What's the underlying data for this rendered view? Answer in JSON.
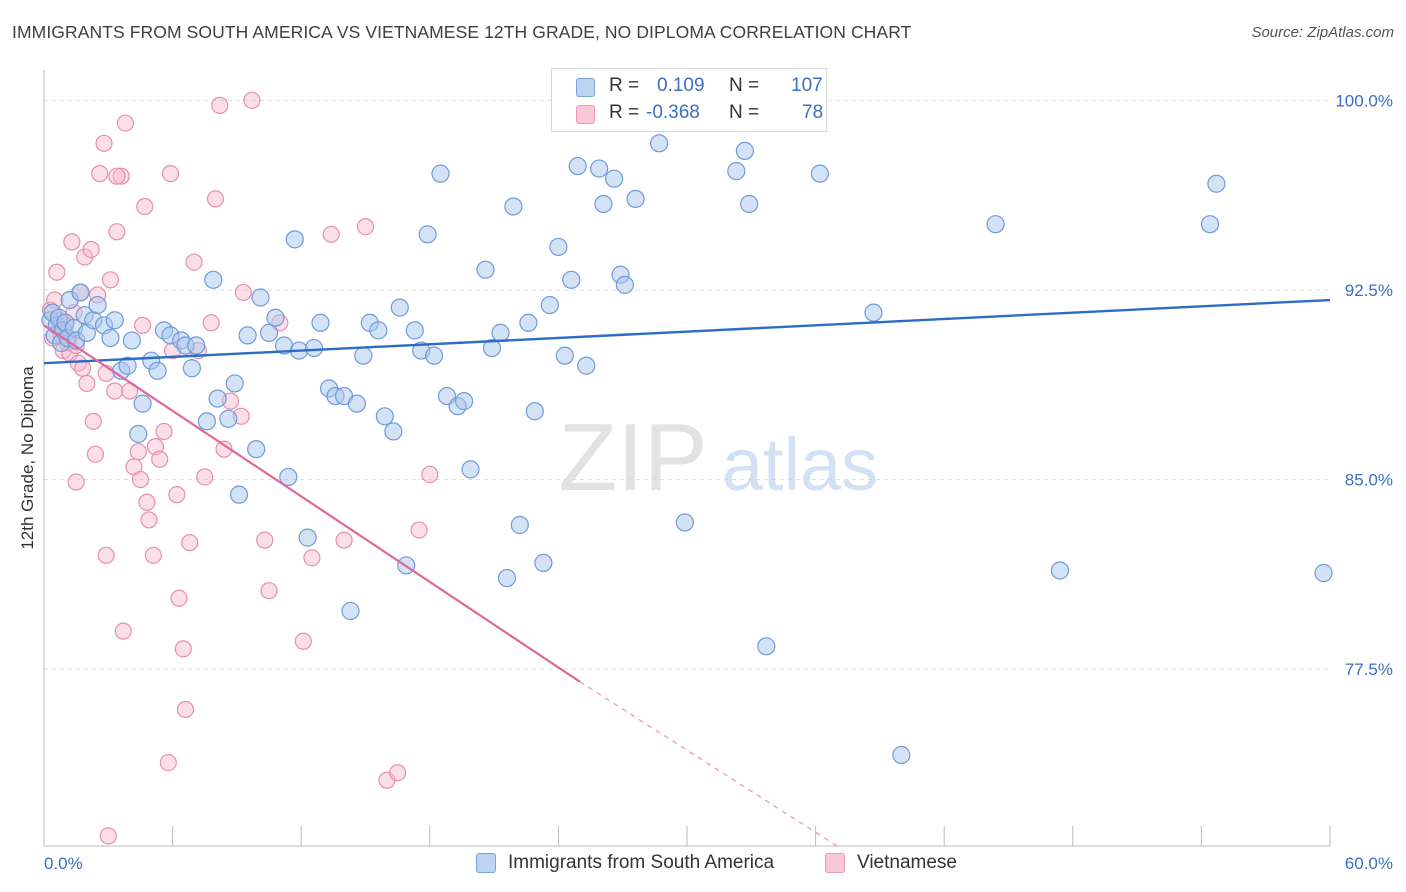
{
  "header": {
    "title": "IMMIGRANTS FROM SOUTH AMERICA VS VIETNAMESE 12TH GRADE, NO DIPLOMA CORRELATION CHART",
    "source": "Source: ZipAtlas.com"
  },
  "watermark": {
    "zip": "ZIP",
    "atlas": "atlas"
  },
  "legend": {
    "r_label": "R =",
    "n_label": "N =",
    "rows": [
      {
        "r": "0.109",
        "n": "107"
      },
      {
        "r": "-0.368",
        "n": "78"
      }
    ]
  },
  "colors": {
    "blue_fill": "#a9c6ee",
    "blue_stroke": "#6f9bd9",
    "blue_line": "#2c6cc4",
    "pink_fill": "#f6b9cd",
    "pink_stroke": "#e88fab",
    "pink_line": "#e0679a",
    "tick_label": "#3b6fc4",
    "grid": "#dddddd"
  },
  "chart_data": {
    "type": "scatter",
    "title": "IMMIGRANTS FROM SOUTH AMERICA VS VIETNAMESE 12TH GRADE, NO DIPLOMA CORRELATION CHART",
    "xlabel": "",
    "ylabel": "12th Grade, No Diploma",
    "xlim": [
      0,
      60
    ],
    "ylim": [
      70.5,
      101.2
    ],
    "x_tick_labels": [
      "0.0%",
      "60.0%"
    ],
    "y_ticks": [
      100,
      92.5,
      85,
      77.5
    ],
    "y_tick_labels": [
      "100.0%",
      "92.5%",
      "85.0%",
      "77.5%"
    ],
    "grid": true,
    "legend_position": "bottom",
    "series": [
      {
        "name": "Immigrants from South America",
        "r": 0.109,
        "n": 107,
        "trend": {
          "x0": 0,
          "y0": 89.6,
          "x1": 60,
          "y1": 92.1
        },
        "points": [
          [
            0.3,
            91.3
          ],
          [
            0.4,
            91.6
          ],
          [
            0.5,
            90.7
          ],
          [
            0.6,
            91.1
          ],
          [
            0.7,
            91.4
          ],
          [
            0.8,
            90.4
          ],
          [
            0.9,
            90.9
          ],
          [
            1.0,
            91.2
          ],
          [
            1.1,
            90.6
          ],
          [
            1.2,
            92.1
          ],
          [
            1.4,
            91.0
          ],
          [
            1.5,
            90.5
          ],
          [
            1.7,
            92.4
          ],
          [
            1.9,
            91.5
          ],
          [
            2.0,
            90.8
          ],
          [
            2.3,
            91.3
          ],
          [
            2.5,
            91.9
          ],
          [
            2.8,
            91.1
          ],
          [
            3.1,
            90.6
          ],
          [
            3.3,
            91.3
          ],
          [
            3.6,
            89.3
          ],
          [
            3.9,
            89.5
          ],
          [
            4.1,
            90.5
          ],
          [
            4.4,
            86.8
          ],
          [
            4.6,
            88.0
          ],
          [
            5.0,
            89.7
          ],
          [
            5.3,
            89.3
          ],
          [
            5.6,
            90.9
          ],
          [
            5.9,
            90.7
          ],
          [
            6.4,
            90.5
          ],
          [
            6.6,
            90.3
          ],
          [
            6.9,
            89.4
          ],
          [
            7.1,
            90.3
          ],
          [
            7.6,
            87.3
          ],
          [
            7.9,
            92.9
          ],
          [
            8.1,
            88.2
          ],
          [
            8.6,
            87.4
          ],
          [
            8.9,
            88.8
          ],
          [
            9.1,
            84.4
          ],
          [
            9.5,
            90.7
          ],
          [
            9.9,
            86.2
          ],
          [
            10.1,
            92.2
          ],
          [
            10.5,
            90.8
          ],
          [
            10.8,
            91.4
          ],
          [
            11.2,
            90.3
          ],
          [
            11.4,
            85.1
          ],
          [
            11.7,
            94.5
          ],
          [
            11.9,
            90.1
          ],
          [
            12.3,
            82.7
          ],
          [
            12.6,
            90.2
          ],
          [
            12.9,
            91.2
          ],
          [
            13.3,
            88.6
          ],
          [
            13.6,
            88.3
          ],
          [
            14.0,
            88.3
          ],
          [
            14.3,
            79.8
          ],
          [
            14.6,
            88.0
          ],
          [
            14.9,
            89.9
          ],
          [
            15.2,
            91.2
          ],
          [
            15.6,
            90.9
          ],
          [
            15.9,
            87.5
          ],
          [
            16.3,
            86.9
          ],
          [
            16.6,
            91.8
          ],
          [
            16.9,
            81.6
          ],
          [
            17.3,
            90.9
          ],
          [
            17.6,
            90.1
          ],
          [
            17.9,
            94.7
          ],
          [
            18.2,
            89.9
          ],
          [
            18.5,
            97.1
          ],
          [
            18.8,
            88.3
          ],
          [
            19.3,
            87.9
          ],
          [
            19.6,
            88.1
          ],
          [
            19.9,
            85.4
          ],
          [
            20.6,
            93.3
          ],
          [
            20.9,
            90.2
          ],
          [
            21.3,
            90.8
          ],
          [
            21.6,
            81.1
          ],
          [
            21.9,
            95.8
          ],
          [
            22.2,
            83.2
          ],
          [
            22.6,
            91.2
          ],
          [
            22.9,
            87.7
          ],
          [
            23.3,
            81.7
          ],
          [
            23.6,
            91.9
          ],
          [
            24.0,
            94.2
          ],
          [
            24.3,
            89.9
          ],
          [
            24.6,
            92.9
          ],
          [
            24.9,
            97.4
          ],
          [
            25.3,
            89.5
          ],
          [
            25.9,
            97.3
          ],
          [
            26.1,
            95.9
          ],
          [
            26.6,
            96.9
          ],
          [
            26.9,
            93.1
          ],
          [
            27.1,
            92.7
          ],
          [
            27.6,
            96.1
          ],
          [
            28.7,
            98.3
          ],
          [
            29.9,
            83.3
          ],
          [
            32.3,
            97.2
          ],
          [
            32.7,
            98.0
          ],
          [
            32.9,
            95.9
          ],
          [
            33.7,
            78.4
          ],
          [
            36.2,
            97.1
          ],
          [
            38.7,
            91.6
          ],
          [
            40.0,
            74.1
          ],
          [
            44.4,
            95.1
          ],
          [
            47.4,
            81.4
          ],
          [
            54.4,
            95.1
          ],
          [
            54.7,
            96.7
          ],
          [
            59.7,
            81.3
          ]
        ]
      },
      {
        "name": "Vietnamese",
        "r": -0.368,
        "n": 78,
        "trend": {
          "x0": 0,
          "y0": 91.1,
          "x1": 25.0,
          "y1": 77.0,
          "dash_to_x": 37.0,
          "dash_to_y": 70.5
        },
        "points": [
          [
            0.3,
            91.7
          ],
          [
            0.4,
            90.6
          ],
          [
            0.5,
            92.1
          ],
          [
            0.6,
            93.2
          ],
          [
            0.7,
            91.3
          ],
          [
            0.8,
            90.7
          ],
          [
            0.9,
            90.1
          ],
          [
            1.0,
            91.1
          ],
          [
            1.1,
            90.4
          ],
          [
            1.2,
            90.0
          ],
          [
            1.3,
            94.4
          ],
          [
            1.4,
            91.6
          ],
          [
            1.5,
            90.3
          ],
          [
            1.6,
            89.6
          ],
          [
            1.7,
            92.4
          ],
          [
            1.8,
            89.4
          ],
          [
            1.9,
            93.8
          ],
          [
            2.0,
            88.8
          ],
          [
            2.2,
            94.1
          ],
          [
            2.3,
            87.3
          ],
          [
            2.5,
            92.3
          ],
          [
            2.6,
            97.1
          ],
          [
            2.8,
            98.3
          ],
          [
            2.9,
            89.2
          ],
          [
            3.1,
            92.9
          ],
          [
            3.3,
            88.5
          ],
          [
            3.4,
            94.8
          ],
          [
            3.6,
            97.0
          ],
          [
            3.8,
            99.1
          ],
          [
            4.0,
            88.5
          ],
          [
            4.2,
            85.5
          ],
          [
            4.4,
            86.1
          ],
          [
            4.5,
            85.0
          ],
          [
            4.6,
            91.1
          ],
          [
            4.8,
            84.1
          ],
          [
            4.9,
            83.4
          ],
          [
            5.1,
            82.0
          ],
          [
            5.2,
            86.3
          ],
          [
            5.4,
            85.8
          ],
          [
            5.6,
            86.9
          ],
          [
            5.8,
            73.8
          ],
          [
            6.0,
            90.1
          ],
          [
            6.2,
            84.4
          ],
          [
            6.3,
            80.3
          ],
          [
            6.5,
            78.3
          ],
          [
            6.6,
            75.9
          ],
          [
            6.8,
            82.5
          ],
          [
            7.0,
            93.6
          ],
          [
            7.2,
            90.1
          ],
          [
            7.5,
            85.1
          ],
          [
            7.8,
            91.2
          ],
          [
            8.0,
            96.1
          ],
          [
            8.2,
            99.8
          ],
          [
            8.4,
            86.2
          ],
          [
            8.7,
            88.1
          ],
          [
            9.2,
            87.5
          ],
          [
            9.3,
            92.4
          ],
          [
            9.7,
            100.0
          ],
          [
            10.3,
            82.6
          ],
          [
            10.5,
            80.6
          ],
          [
            11.0,
            91.2
          ],
          [
            12.1,
            78.6
          ],
          [
            12.5,
            81.9
          ],
          [
            13.4,
            94.7
          ],
          [
            14.0,
            82.6
          ],
          [
            15.0,
            95.0
          ],
          [
            16.0,
            73.1
          ],
          [
            16.5,
            73.4
          ],
          [
            17.5,
            83.0
          ],
          [
            18.0,
            85.2
          ],
          [
            2.9,
            82.0
          ],
          [
            3.7,
            79.0
          ],
          [
            3.0,
            70.9
          ],
          [
            4.7,
            95.8
          ],
          [
            5.9,
            97.1
          ],
          [
            3.4,
            97.0
          ],
          [
            1.5,
            84.9
          ],
          [
            2.4,
            86.0
          ]
        ]
      }
    ]
  },
  "bottom_legend": {
    "items": [
      {
        "label": "Immigrants from South America"
      },
      {
        "label": "Vietnamese"
      }
    ]
  }
}
